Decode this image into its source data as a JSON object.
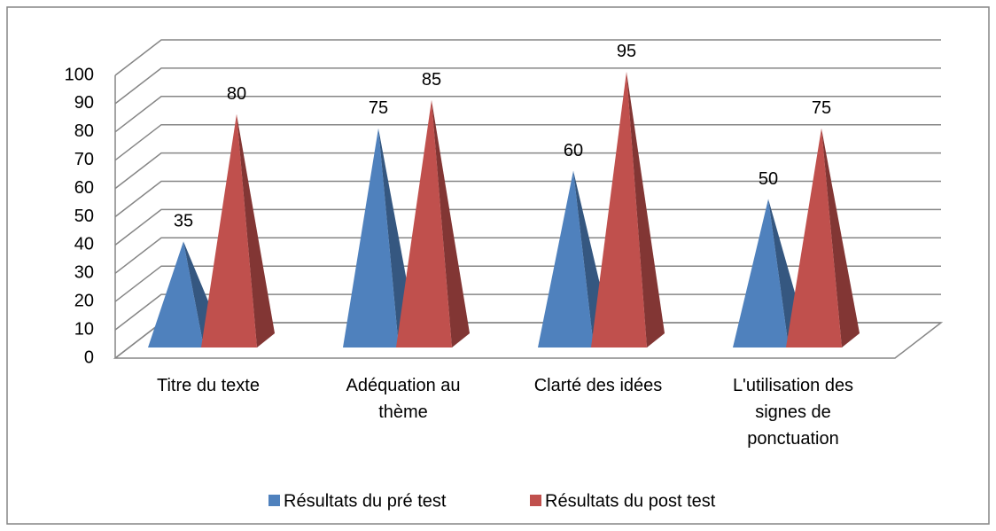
{
  "chart_data": {
    "type": "pyramid3d",
    "categories": [
      "Titre du texte",
      "Adéquation au thème",
      "Clarté des idées",
      "L'utilisation des signes de ponctuation"
    ],
    "series": [
      {
        "name": "Résultats du pré test",
        "color": "#4f81bd",
        "values": [
          35,
          75,
          60,
          50
        ]
      },
      {
        "name": "Résultats du post test",
        "color": "#c0504d",
        "values": [
          80,
          85,
          95,
          75
        ]
      }
    ],
    "ylim": [
      0,
      100
    ],
    "yticks": [
      0,
      10,
      20,
      30,
      40,
      50,
      60,
      70,
      80,
      90,
      100
    ],
    "grid": true,
    "legend": "bottom"
  }
}
